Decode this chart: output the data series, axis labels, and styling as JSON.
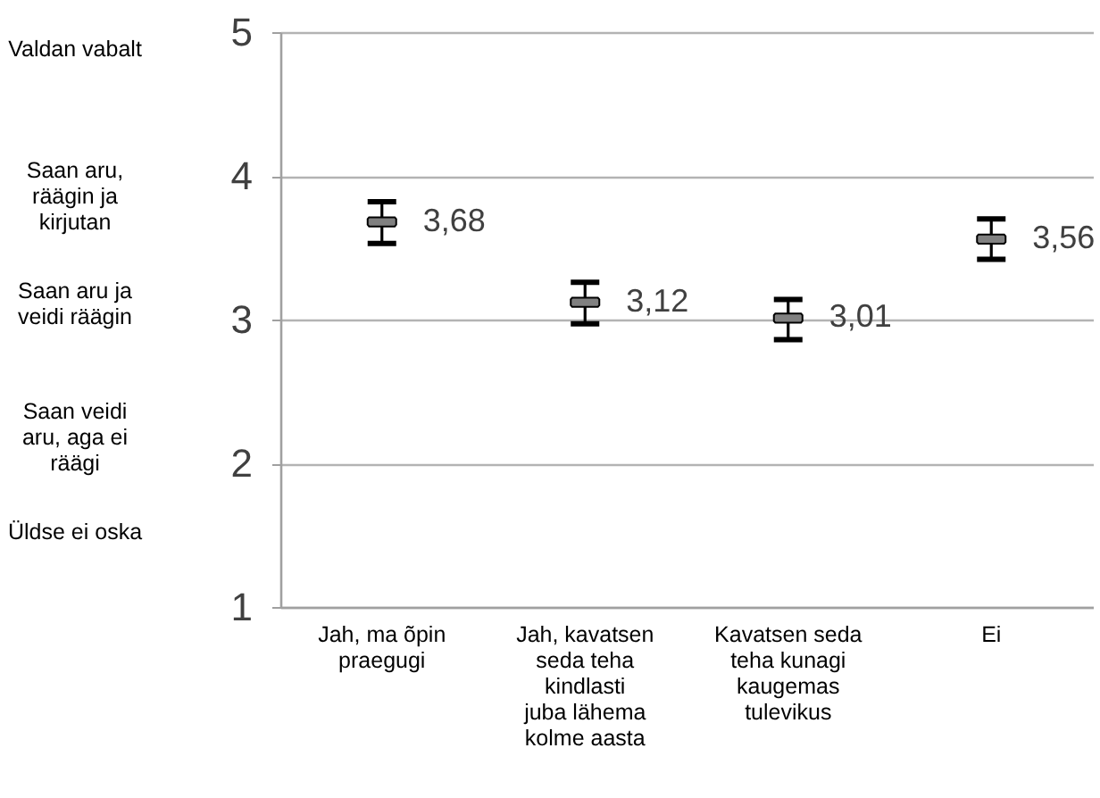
{
  "chart_data": {
    "type": "scatter",
    "categories": [
      "Jah, ma õpin praegugi",
      "Jah, kavatsen seda teha kindlasti juba lähema kolme aasta",
      "Kavatsen seda teha kunagi kaugemas tulevikus",
      "Ei"
    ],
    "series": [
      {
        "color": "#808080",
        "values": [
          3.68,
          3.12,
          3.01,
          3.56
        ],
        "errors": [
          [
            3.53,
            3.82
          ],
          [
            2.97,
            3.26
          ],
          [
            2.86,
            3.14
          ],
          [
            3.42,
            3.7
          ]
        ],
        "value_labels": [
          "3,68",
          "3,12",
          "3,01",
          "3,56"
        ]
      }
    ],
    "ylim": [
      1,
      5
    ],
    "yticks": [
      1,
      2,
      3,
      4,
      5
    ],
    "grid": "y",
    "marker": "square",
    "annotations": [
      "Valdan vabalt",
      "Saan aru, räägin ja kirjutan",
      "Saan aru ja veidi räägin",
      "Saan veidi aru, aga ei räägi",
      "Üldse ei oska"
    ]
  }
}
